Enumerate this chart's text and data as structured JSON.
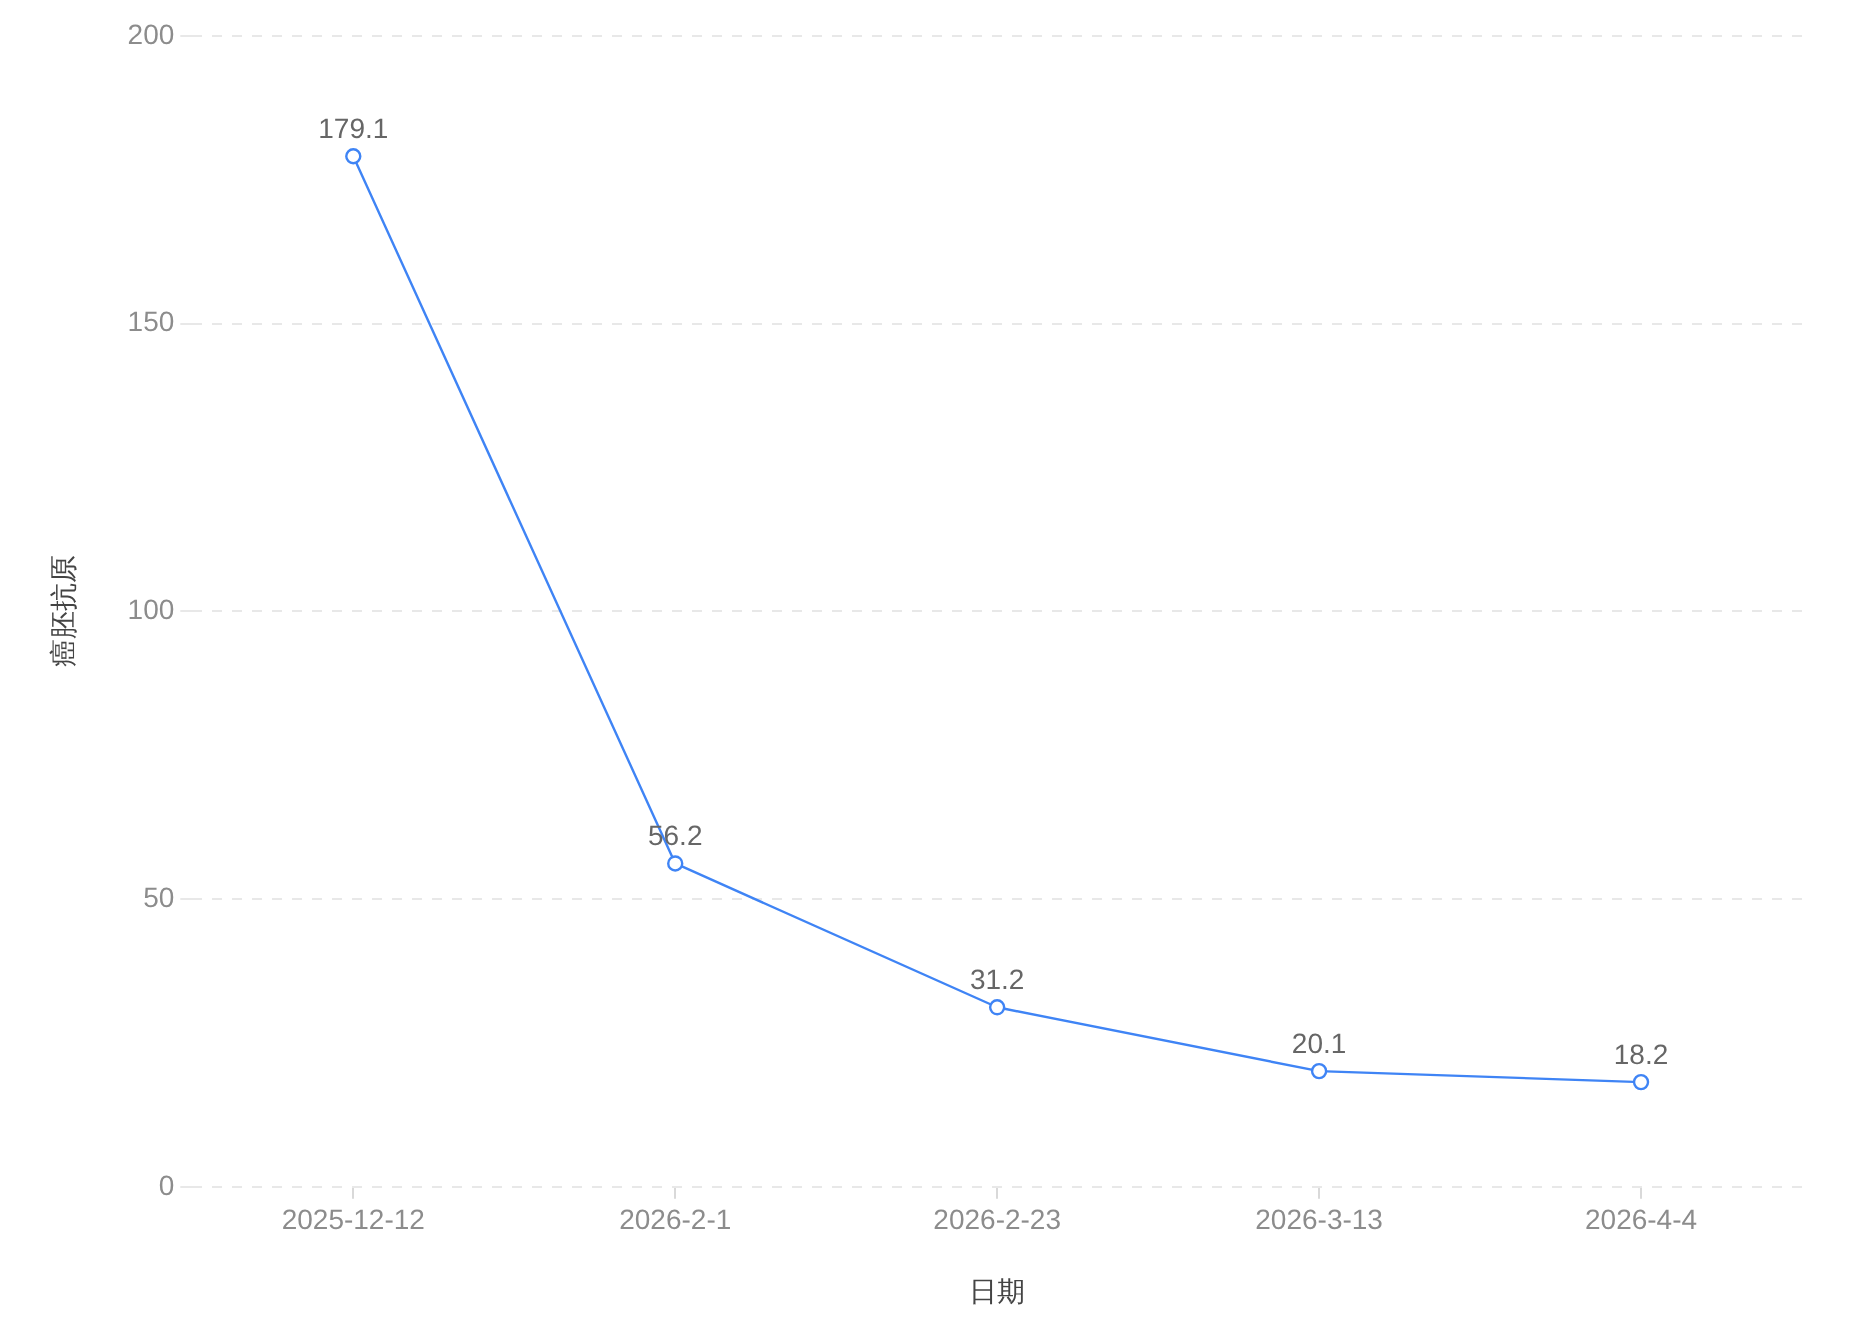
{
  "chart_data": {
    "type": "line",
    "xlabel": "日期",
    "ylabel": "癌胚抗原",
    "categories": [
      "2025-12-12",
      "2026-2-1",
      "2026-2-23",
      "2026-3-13",
      "2026-4-4"
    ],
    "series": [
      {
        "color": "#3f84f5",
        "values": [
          179.1,
          56.2,
          31.2,
          20.1,
          18.2
        ]
      }
    ],
    "ylim": [
      0,
      200
    ],
    "yticks": [
      0,
      50,
      100,
      150,
      200
    ],
    "grid": "y",
    "legend": false,
    "marker": "circle",
    "line_style": "solid",
    "data_labels": true
  }
}
